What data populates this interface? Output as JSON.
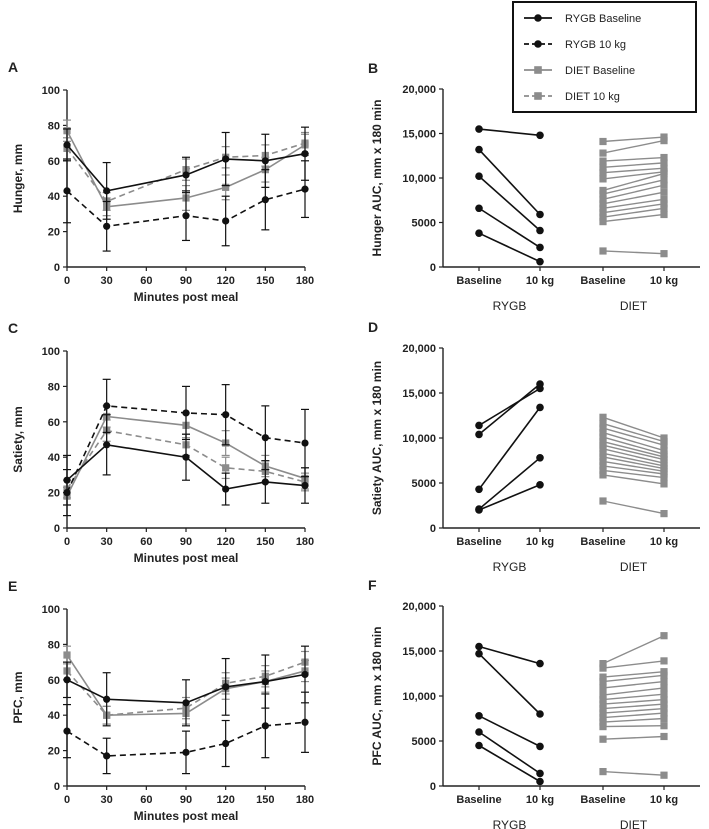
{
  "colors": {
    "rygb": "#111111",
    "diet": "#8c8c8c",
    "axis": "#222222"
  },
  "chart_data": {
    "legend": {
      "position": "top-right",
      "entries": [
        {
          "label": "RYGB Baseline",
          "series": "rygb_base"
        },
        {
          "label": "RYGB 10 kg",
          "series": "rygb_10"
        },
        {
          "label": "DIET Baseline",
          "series": "diet_base"
        },
        {
          "label": "DIET 10 kg",
          "series": "diet_10"
        }
      ]
    },
    "time_panels": [
      {
        "letter": "A",
        "type": "line",
        "ylabel": "Hunger, mm",
        "xlabel": "Minutes post meal",
        "x": [
          0,
          30,
          90,
          120,
          150,
          180
        ],
        "xticks": [
          "0",
          "30",
          "60",
          "90",
          "120",
          "150",
          "180"
        ],
        "ylim": [
          0,
          100
        ],
        "yticks": [
          "0",
          "20",
          "40",
          "60",
          "80",
          "100"
        ],
        "series": [
          {
            "name": "RYGB Baseline",
            "key": "rygb_base",
            "values": [
              69,
              43,
              52,
              61,
              60,
              64
            ],
            "err": [
              9,
              16,
              10,
              15,
              15,
              15
            ]
          },
          {
            "name": "RYGB 10 kg",
            "key": "rygb_10",
            "values": [
              43,
              23,
              29,
              26,
              38,
              44
            ],
            "err": [
              18,
              14,
              14,
              14,
              17,
              16
            ]
          },
          {
            "name": "DIET Baseline",
            "key": "diet_base",
            "values": [
              77,
              34,
              39,
              45,
              55,
              69
            ],
            "err": [
              6,
              5,
              7,
              7,
              7,
              6
            ]
          },
          {
            "name": "DIET 10 kg",
            "key": "diet_10",
            "values": [
              67,
              37,
              55,
              62,
              63,
              70
            ],
            "err": [
              6,
              5,
              6,
              6,
              6,
              6
            ]
          }
        ]
      },
      {
        "letter": "C",
        "type": "line",
        "ylabel": "Satiety, mm",
        "xlabel": "Minutes post meal",
        "x": [
          0,
          30,
          90,
          120,
          150,
          180
        ],
        "xticks": [
          "0",
          "30",
          "60",
          "90",
          "120",
          "150",
          "180"
        ],
        "ylim": [
          0,
          100
        ],
        "yticks": [
          "0",
          "20",
          "40",
          "60",
          "80",
          "100"
        ],
        "series": [
          {
            "name": "RYGB Baseline",
            "key": "rygb_base",
            "values": [
              27,
              47,
              40,
              22,
              26,
              24
            ],
            "err": [
              14,
              17,
              13,
              9,
              12,
              10
            ]
          },
          {
            "name": "RYGB 10 kg",
            "key": "rygb_10",
            "values": [
              20,
              69,
              65,
              64,
              51,
              48
            ],
            "err": [
              13,
              15,
              15,
              17,
              18,
              19
            ]
          },
          {
            "name": "DIET Baseline",
            "key": "diet_base",
            "values": [
              18,
              63,
              58,
              48,
              35,
              28
            ],
            "err": [
              5,
              6,
              7,
              7,
              6,
              6
            ]
          },
          {
            "name": "DIET 10 kg",
            "key": "diet_10",
            "values": [
              22,
              55,
              47,
              34,
              32,
              26
            ],
            "err": [
              5,
              6,
              6,
              6,
              6,
              5
            ]
          }
        ]
      },
      {
        "letter": "E",
        "type": "line",
        "ylabel": "PFC, mm",
        "xlabel": "Minutes post meal",
        "x": [
          0,
          30,
          90,
          120,
          150,
          180
        ],
        "xticks": [
          "0",
          "30",
          "60",
          "90",
          "120",
          "150",
          "180"
        ],
        "ylim": [
          0,
          100
        ],
        "yticks": [
          "0",
          "20",
          "40",
          "60",
          "80",
          "100"
        ],
        "series": [
          {
            "name": "RYGB Baseline",
            "key": "rygb_base",
            "values": [
              60,
              49,
              47,
              56,
              59,
              63
            ],
            "err": [
              10,
              15,
              13,
              16,
              15,
              16
            ]
          },
          {
            "name": "RYGB 10 kg",
            "key": "rygb_10",
            "values": [
              31,
              17,
              19,
              24,
              34,
              36
            ],
            "err": [
              15,
              10,
              12,
              13,
              18,
              17
            ]
          },
          {
            "name": "DIET Baseline",
            "key": "diet_base",
            "values": [
              74,
              40,
              41,
              55,
              59,
              65
            ],
            "err": [
              5,
              5,
              6,
              6,
              6,
              6
            ]
          },
          {
            "name": "DIET 10 kg",
            "key": "diet_10",
            "values": [
              65,
              40,
              44,
              58,
              62,
              70
            ],
            "err": [
              5,
              5,
              6,
              6,
              6,
              6
            ]
          }
        ]
      }
    ],
    "auc_panels": [
      {
        "letter": "B",
        "type": "scatter",
        "ylabel": "Hunger AUC, mm x 180 min",
        "ylim": [
          0,
          20000
        ],
        "yticks": [
          "0",
          "5000",
          "10,000",
          "15,000",
          "20,000"
        ],
        "xticks": [
          "Baseline",
          "10 kg",
          "Baseline",
          "10 kg"
        ],
        "groups": [
          "RYGB",
          "DIET"
        ],
        "rygb_pairs": [
          [
            15500,
            14800
          ],
          [
            13200,
            5900
          ],
          [
            10200,
            4100
          ],
          [
            6600,
            2200
          ],
          [
            3800,
            600
          ]
        ],
        "diet_pairs": [
          [
            14100,
            14600
          ],
          [
            12800,
            14200
          ],
          [
            11900,
            12300
          ],
          [
            11200,
            11700
          ],
          [
            10600,
            11100
          ],
          [
            9900,
            10700
          ],
          [
            8600,
            10500
          ],
          [
            8200,
            9800
          ],
          [
            7600,
            9200
          ],
          [
            7100,
            8400
          ],
          [
            6600,
            7600
          ],
          [
            6100,
            7100
          ],
          [
            5600,
            6600
          ],
          [
            5100,
            5900
          ],
          [
            1800,
            1500
          ]
        ]
      },
      {
        "letter": "D",
        "type": "scatter",
        "ylabel": "Satiety AUC, mm x 180 min",
        "ylim": [
          0,
          20000
        ],
        "yticks": [
          "0",
          "5000",
          "10,000",
          "15,000",
          "20,000"
        ],
        "xticks": [
          "Baseline",
          "10 kg",
          "Baseline",
          "10 kg"
        ],
        "groups": [
          "RYGB",
          "DIET"
        ],
        "rygb_pairs": [
          [
            11400,
            15500
          ],
          [
            10400,
            16000
          ],
          [
            4300,
            13400
          ],
          [
            2100,
            7800
          ],
          [
            2000,
            4800
          ]
        ],
        "diet_pairs": [
          [
            12300,
            10000
          ],
          [
            11600,
            9600
          ],
          [
            11100,
            9200
          ],
          [
            10600,
            8600
          ],
          [
            10100,
            8200
          ],
          [
            9600,
            7900
          ],
          [
            9200,
            7600
          ],
          [
            8800,
            7200
          ],
          [
            8300,
            6900
          ],
          [
            7900,
            6600
          ],
          [
            7400,
            6300
          ],
          [
            6900,
            6000
          ],
          [
            6400,
            5600
          ],
          [
            5900,
            4900
          ],
          [
            3000,
            1600
          ]
        ]
      },
      {
        "letter": "F",
        "type": "scatter",
        "ylabel": "PFC AUC, mm x 180 min",
        "ylim": [
          0,
          20000
        ],
        "yticks": [
          "0",
          "5000",
          "10,000",
          "15,000",
          "20,000"
        ],
        "xticks": [
          "Baseline",
          "10 kg",
          "Baseline",
          "10 kg"
        ],
        "groups": [
          "RYGB",
          "DIET"
        ],
        "rygb_pairs": [
          [
            15500,
            13600
          ],
          [
            14700,
            8000
          ],
          [
            7800,
            4400
          ],
          [
            6000,
            1400
          ],
          [
            4500,
            500
          ]
        ],
        "diet_pairs": [
          [
            13600,
            16700
          ],
          [
            13100,
            13900
          ],
          [
            12100,
            12700
          ],
          [
            11600,
            12300
          ],
          [
            10900,
            11600
          ],
          [
            10100,
            10900
          ],
          [
            9600,
            10200
          ],
          [
            9100,
            9600
          ],
          [
            8600,
            9100
          ],
          [
            8100,
            8600
          ],
          [
            7600,
            8100
          ],
          [
            7100,
            7500
          ],
          [
            6600,
            6700
          ],
          [
            5200,
            5500
          ],
          [
            1600,
            1200
          ]
        ]
      }
    ]
  }
}
